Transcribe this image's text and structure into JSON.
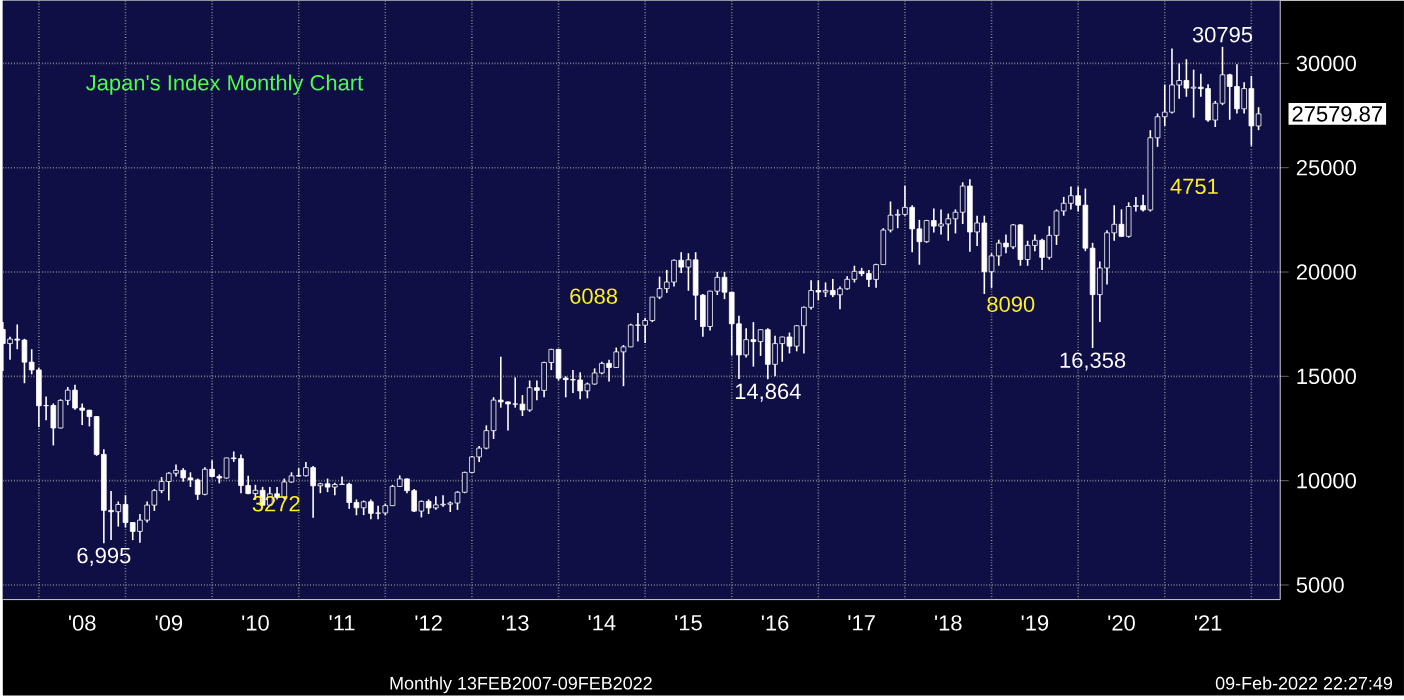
{
  "chart_data": {
    "type": "candlestick",
    "title": "Japan's Index Monthly Chart",
    "x": [
      "2007-08",
      "2007-09",
      "2007-10",
      "2007-11",
      "2007-12",
      "2008-01",
      "2008-02",
      "2008-03",
      "2008-04",
      "2008-05",
      "2008-06",
      "2008-07",
      "2008-08",
      "2008-09",
      "2008-10",
      "2008-11",
      "2008-12",
      "2009-01",
      "2009-02",
      "2009-03",
      "2009-04",
      "2009-05",
      "2009-06",
      "2009-07",
      "2009-08",
      "2009-09",
      "2009-10",
      "2009-11",
      "2009-12",
      "2010-01",
      "2010-02",
      "2010-03",
      "2010-04",
      "2010-05",
      "2010-06",
      "2010-07",
      "2010-08",
      "2010-09",
      "2010-10",
      "2010-11",
      "2010-12",
      "2011-01",
      "2011-02",
      "2011-03",
      "2011-04",
      "2011-05",
      "2011-06",
      "2011-07",
      "2011-08",
      "2011-09",
      "2011-10",
      "2011-11",
      "2011-12",
      "2012-01",
      "2012-02",
      "2012-03",
      "2012-04",
      "2012-05",
      "2012-06",
      "2012-07",
      "2012-08",
      "2012-09",
      "2012-10",
      "2012-11",
      "2012-12",
      "2013-01",
      "2013-02",
      "2013-03",
      "2013-04",
      "2013-05",
      "2013-06",
      "2013-07",
      "2013-08",
      "2013-09",
      "2013-10",
      "2013-11",
      "2013-12",
      "2014-01",
      "2014-02",
      "2014-03",
      "2014-04",
      "2014-05",
      "2014-06",
      "2014-07",
      "2014-08",
      "2014-09",
      "2014-10",
      "2014-11",
      "2014-12",
      "2015-01",
      "2015-02",
      "2015-03",
      "2015-04",
      "2015-05",
      "2015-06",
      "2015-07",
      "2015-08",
      "2015-09",
      "2015-10",
      "2015-11",
      "2015-12",
      "2016-01",
      "2016-02",
      "2016-03",
      "2016-04",
      "2016-05",
      "2016-06",
      "2016-07",
      "2016-08",
      "2016-09",
      "2016-10",
      "2016-11",
      "2016-12",
      "2017-01",
      "2017-02",
      "2017-03",
      "2017-04",
      "2017-05",
      "2017-06",
      "2017-07",
      "2017-08",
      "2017-09",
      "2017-10",
      "2017-11",
      "2017-12",
      "2018-01",
      "2018-02",
      "2018-03",
      "2018-04",
      "2018-05",
      "2018-06",
      "2018-07",
      "2018-08",
      "2018-09",
      "2018-10",
      "2018-11",
      "2018-12",
      "2019-01",
      "2019-02",
      "2019-03",
      "2019-04",
      "2019-05",
      "2019-06",
      "2019-07",
      "2019-08",
      "2019-09",
      "2019-10",
      "2019-11",
      "2019-12",
      "2020-01",
      "2020-02",
      "2020-03",
      "2020-04",
      "2020-05",
      "2020-06",
      "2020-07",
      "2020-08",
      "2020-09",
      "2020-10",
      "2020-11",
      "2020-12",
      "2021-01",
      "2021-02",
      "2021-03",
      "2021-04",
      "2021-05",
      "2021-06",
      "2021-07",
      "2021-08",
      "2021-09",
      "2021-10",
      "2021-11",
      "2021-12",
      "2022-01",
      "2022-02"
    ],
    "ohlc": [
      [
        17248,
        17600,
        15262,
        16569
      ],
      [
        16569,
        16900,
        15800,
        16786
      ],
      [
        16786,
        17488,
        16300,
        16738
      ],
      [
        16738,
        16800,
        14670,
        15680
      ],
      [
        15680,
        16300,
        15100,
        15307
      ],
      [
        15307,
        15400,
        12570,
        13592
      ],
      [
        13592,
        14030,
        12900,
        13603
      ],
      [
        13603,
        13700,
        11690,
        12525
      ],
      [
        12525,
        13900,
        12500,
        13849
      ],
      [
        13849,
        14490,
        13620,
        14338
      ],
      [
        14338,
        14600,
        13400,
        13481
      ],
      [
        13481,
        13700,
        12670,
        13376
      ],
      [
        13376,
        13400,
        12600,
        13072
      ],
      [
        13072,
        13100,
        11190,
        11259
      ],
      [
        11259,
        11500,
        6995,
        8576
      ],
      [
        8576,
        9500,
        7160,
        8512
      ],
      [
        8512,
        9000,
        7800,
        8859
      ],
      [
        8859,
        9300,
        7750,
        7994
      ],
      [
        7994,
        8000,
        7150,
        7568
      ],
      [
        7568,
        8400,
        7021,
        8109
      ],
      [
        8109,
        9000,
        8000,
        8828
      ],
      [
        8828,
        9600,
        8550,
        9522
      ],
      [
        9522,
        10170,
        9400,
        9958
      ],
      [
        9958,
        10400,
        9050,
        10356
      ],
      [
        10356,
        10770,
        10200,
        10492
      ],
      [
        10492,
        10600,
        9950,
        10133
      ],
      [
        10133,
        10400,
        9700,
        10034
      ],
      [
        10034,
        10100,
        9080,
        9345
      ],
      [
        9345,
        10640,
        9300,
        10546
      ],
      [
        10546,
        10980,
        10150,
        10198
      ],
      [
        10198,
        10300,
        9870,
        10126
      ],
      [
        10126,
        11100,
        10100,
        11089
      ],
      [
        11089,
        11400,
        10900,
        11057
      ],
      [
        11057,
        11250,
        9400,
        9768
      ],
      [
        9768,
        10240,
        9350,
        9382
      ],
      [
        9382,
        9800,
        9090,
        9537
      ],
      [
        9537,
        9700,
        8800,
        8824
      ],
      [
        8824,
        9700,
        8800,
        9369
      ],
      [
        9369,
        9700,
        9100,
        9202
      ],
      [
        9202,
        10100,
        9100,
        9937
      ],
      [
        9937,
        10400,
        9900,
        10228
      ],
      [
        10228,
        10600,
        10200,
        10237
      ],
      [
        10237,
        10900,
        10200,
        10624
      ],
      [
        10624,
        10700,
        8227,
        9755
      ],
      [
        9755,
        9900,
        9400,
        9849
      ],
      [
        9849,
        10100,
        9450,
        9693
      ],
      [
        9693,
        9900,
        9300,
        9816
      ],
      [
        9816,
        10200,
        9800,
        9833
      ],
      [
        9833,
        9900,
        8650,
        8955
      ],
      [
        8955,
        9100,
        8340,
        8700
      ],
      [
        8700,
        9050,
        8350,
        8988
      ],
      [
        8988,
        9100,
        8150,
        8434
      ],
      [
        8434,
        8800,
        8150,
        8455
      ],
      [
        8455,
        8900,
        8350,
        8802
      ],
      [
        8802,
        9800,
        8800,
        9723
      ],
      [
        9723,
        10250,
        9700,
        10083
      ],
      [
        10083,
        10100,
        9400,
        9520
      ],
      [
        9520,
        9600,
        8500,
        8542
      ],
      [
        8542,
        9050,
        8240,
        9006
      ],
      [
        9006,
        9100,
        8400,
        8695
      ],
      [
        8695,
        9250,
        8600,
        8839
      ],
      [
        8839,
        9300,
        8750,
        8870
      ],
      [
        8870,
        9000,
        8500,
        8928
      ],
      [
        8928,
        9500,
        8600,
        9446
      ],
      [
        9446,
        10430,
        9400,
        10395
      ],
      [
        10395,
        11180,
        10380,
        11138
      ],
      [
        11138,
        11660,
        10900,
        11559
      ],
      [
        11559,
        12650,
        11500,
        12397
      ],
      [
        12397,
        14000,
        12000,
        13861
      ],
      [
        13861,
        15942,
        13500,
        13774
      ],
      [
        13774,
        13800,
        12400,
        13677
      ],
      [
        13677,
        14950,
        13500,
        13668
      ],
      [
        13668,
        14100,
        13100,
        13388
      ],
      [
        13388,
        14800,
        13300,
        14455
      ],
      [
        14455,
        14800,
        13850,
        14327
      ],
      [
        14327,
        15700,
        14000,
        15662
      ],
      [
        15662,
        16320,
        15300,
        16291
      ],
      [
        16291,
        16320,
        14800,
        14914
      ],
      [
        14914,
        15000,
        13995,
        14841
      ],
      [
        14841,
        15300,
        14200,
        14827
      ],
      [
        14827,
        15200,
        13900,
        14304
      ],
      [
        14304,
        14700,
        13950,
        14632
      ],
      [
        14632,
        15380,
        14600,
        15162
      ],
      [
        15162,
        15700,
        15100,
        15620
      ],
      [
        15620,
        15800,
        14750,
        15425
      ],
      [
        15425,
        16380,
        15400,
        16173
      ],
      [
        16173,
        16500,
        14530,
        16413
      ],
      [
        16413,
        17520,
        16400,
        17460
      ],
      [
        17460,
        18030,
        16670,
        17450
      ],
      [
        17450,
        17800,
        16600,
        17674
      ],
      [
        17674,
        18800,
        17600,
        18797
      ],
      [
        18797,
        19780,
        18700,
        19206
      ],
      [
        19206,
        20100,
        19000,
        19520
      ],
      [
        19520,
        20600,
        19300,
        20563
      ],
      [
        20563,
        20950,
        19950,
        20235
      ],
      [
        20235,
        20900,
        19100,
        20585
      ],
      [
        20585,
        20950,
        17700,
        18890
      ],
      [
        18890,
        18950,
        16900,
        17388
      ],
      [
        17388,
        19100,
        17200,
        19083
      ],
      [
        19083,
        20000,
        18900,
        19747
      ],
      [
        19747,
        20000,
        18700,
        19033
      ],
      [
        19033,
        19050,
        16000,
        17518
      ],
      [
        17518,
        17900,
        14870,
        16026
      ],
      [
        16026,
        17300,
        15900,
        16758
      ],
      [
        16758,
        17600,
        15470,
        16666
      ],
      [
        16666,
        17250,
        15980,
        17234
      ],
      [
        17234,
        17300,
        14864,
        15575
      ],
      [
        15575,
        16950,
        15000,
        16569
      ],
      [
        16569,
        16900,
        15700,
        16887
      ],
      [
        16887,
        17100,
        16100,
        16449
      ],
      [
        16449,
        17450,
        16200,
        17425
      ],
      [
        17425,
        18350,
        16100,
        18308
      ],
      [
        18308,
        19600,
        18200,
        19114
      ],
      [
        19114,
        19600,
        18650,
        19041
      ],
      [
        19041,
        19500,
        18800,
        19118
      ],
      [
        19118,
        19670,
        18800,
        18909
      ],
      [
        18909,
        19300,
        18220,
        19196
      ],
      [
        19196,
        19800,
        19150,
        19650
      ],
      [
        19650,
        20300,
        19500,
        20033
      ],
      [
        20033,
        20200,
        19800,
        19925
      ],
      [
        19925,
        20100,
        19280,
        19646
      ],
      [
        19646,
        20400,
        19250,
        20356
      ],
      [
        20356,
        22100,
        20350,
        22011
      ],
      [
        22011,
        23380,
        21900,
        22724
      ],
      [
        22724,
        23000,
        22100,
        22764
      ],
      [
        22764,
        24130,
        22700,
        23098
      ],
      [
        23098,
        23200,
        20950,
        22068
      ],
      [
        22068,
        22500,
        20350,
        21454
      ],
      [
        21454,
        22500,
        21400,
        22467
      ],
      [
        22467,
        23050,
        21900,
        22201
      ],
      [
        22201,
        23000,
        21800,
        22304
      ],
      [
        22304,
        22800,
        21500,
        22553
      ],
      [
        22553,
        23000,
        21850,
        22865
      ],
      [
        22865,
        24300,
        22300,
        24120
      ],
      [
        24120,
        24450,
        20970,
        21920
      ],
      [
        21920,
        22700,
        21250,
        22351
      ],
      [
        22351,
        22700,
        18950,
        20015
      ],
      [
        20015,
        20900,
        19240,
        20773
      ],
      [
        20773,
        21550,
        20300,
        21385
      ],
      [
        21385,
        21800,
        20900,
        21206
      ],
      [
        21206,
        22300,
        21100,
        22258
      ],
      [
        22258,
        22300,
        20300,
        20601
      ],
      [
        20601,
        21500,
        20300,
        21276
      ],
      [
        21276,
        21800,
        21000,
        21521
      ],
      [
        21521,
        21600,
        20100,
        20704
      ],
      [
        20704,
        22200,
        20600,
        21756
      ],
      [
        21756,
        23000,
        21300,
        22927
      ],
      [
        22927,
        23600,
        22700,
        23294
      ],
      [
        23294,
        24100,
        23000,
        23657
      ],
      [
        23657,
        24100,
        22900,
        23205
      ],
      [
        23205,
        24000,
        21000,
        21143
      ],
      [
        21143,
        21400,
        16358,
        18917
      ],
      [
        18917,
        20500,
        17600,
        20194
      ],
      [
        20194,
        22000,
        19400,
        21878
      ],
      [
        21878,
        23200,
        21500,
        22288
      ],
      [
        22288,
        23000,
        21700,
        21710
      ],
      [
        21710,
        23340,
        21650,
        23140
      ],
      [
        23140,
        23600,
        22900,
        23185
      ],
      [
        23185,
        23700,
        22900,
        22977
      ],
      [
        22977,
        26800,
        22900,
        26434
      ],
      [
        26434,
        27600,
        26000,
        27444
      ],
      [
        27444,
        28980,
        27000,
        27663
      ],
      [
        27663,
        30714,
        27600,
        28966
      ],
      [
        28966,
        30000,
        28300,
        29179
      ],
      [
        29179,
        30200,
        28400,
        28813
      ],
      [
        28813,
        29700,
        27400,
        28860
      ],
      [
        28860,
        29500,
        28400,
        28792
      ],
      [
        28792,
        29000,
        27200,
        27284
      ],
      [
        27284,
        28200,
        26950,
        28090
      ],
      [
        28090,
        30795,
        28000,
        29453
      ],
      [
        29453,
        29500,
        27300,
        28893
      ],
      [
        28893,
        29960,
        27600,
        27822
      ],
      [
        27822,
        29100,
        27600,
        28792
      ],
      [
        28792,
        29400,
        26050,
        27002
      ],
      [
        27002,
        27900,
        26800,
        27579.87
      ]
    ],
    "color": "#ffffff",
    "xlim": [
      "2007-08",
      "2022-05"
    ],
    "xticks": [
      {
        "value": "2008-01",
        "label": null
      },
      {
        "value": "2008-07",
        "label": "'08"
      },
      {
        "value": "2009-01",
        "label": null
      },
      {
        "value": "2009-07",
        "label": "'09"
      },
      {
        "value": "2010-01",
        "label": null
      },
      {
        "value": "2010-07",
        "label": "'10"
      },
      {
        "value": "2011-01",
        "label": null
      },
      {
        "value": "2011-07",
        "label": "'11"
      },
      {
        "value": "2012-01",
        "label": null
      },
      {
        "value": "2012-07",
        "label": "'12"
      },
      {
        "value": "2013-01",
        "label": null
      },
      {
        "value": "2013-07",
        "label": "'13"
      },
      {
        "value": "2014-01",
        "label": null
      },
      {
        "value": "2014-07",
        "label": "'14"
      },
      {
        "value": "2015-01",
        "label": null
      },
      {
        "value": "2015-07",
        "label": "'15"
      },
      {
        "value": "2016-01",
        "label": null
      },
      {
        "value": "2016-07",
        "label": "'16"
      },
      {
        "value": "2017-01",
        "label": null
      },
      {
        "value": "2017-07",
        "label": "'17"
      },
      {
        "value": "2018-01",
        "label": null
      },
      {
        "value": "2018-07",
        "label": "'18"
      },
      {
        "value": "2019-01",
        "label": null
      },
      {
        "value": "2019-07",
        "label": "'19"
      },
      {
        "value": "2020-01",
        "label": null
      },
      {
        "value": "2020-07",
        "label": "'20"
      },
      {
        "value": "2021-01",
        "label": null
      },
      {
        "value": "2021-07",
        "label": "'21"
      },
      {
        "value": "2022-01",
        "label": null
      }
    ],
    "ylim": [
      4300,
      33000
    ],
    "yticks": [
      5000,
      10000,
      15000,
      20000,
      25000,
      30000
    ],
    "grid": true,
    "annotations": [
      {
        "text": "6,995",
        "x": "2008-10",
        "y": 6995
      },
      {
        "text": "14,864",
        "x": "2016-06",
        "y": 14864
      },
      {
        "text": "16,358",
        "x": "2020-03",
        "y": 16358
      },
      {
        "text": "30795",
        "x": "2021-09",
        "y": 30795
      },
      {
        "text": "27579.87",
        "x": "2022-02",
        "y": 27579.87
      },
      "3272",
      "6088",
      "8090",
      "4751",
      "Monthly 13FEB2007-09FEB2022",
      "09-Feb-2022 22:27:49"
    ]
  }
}
